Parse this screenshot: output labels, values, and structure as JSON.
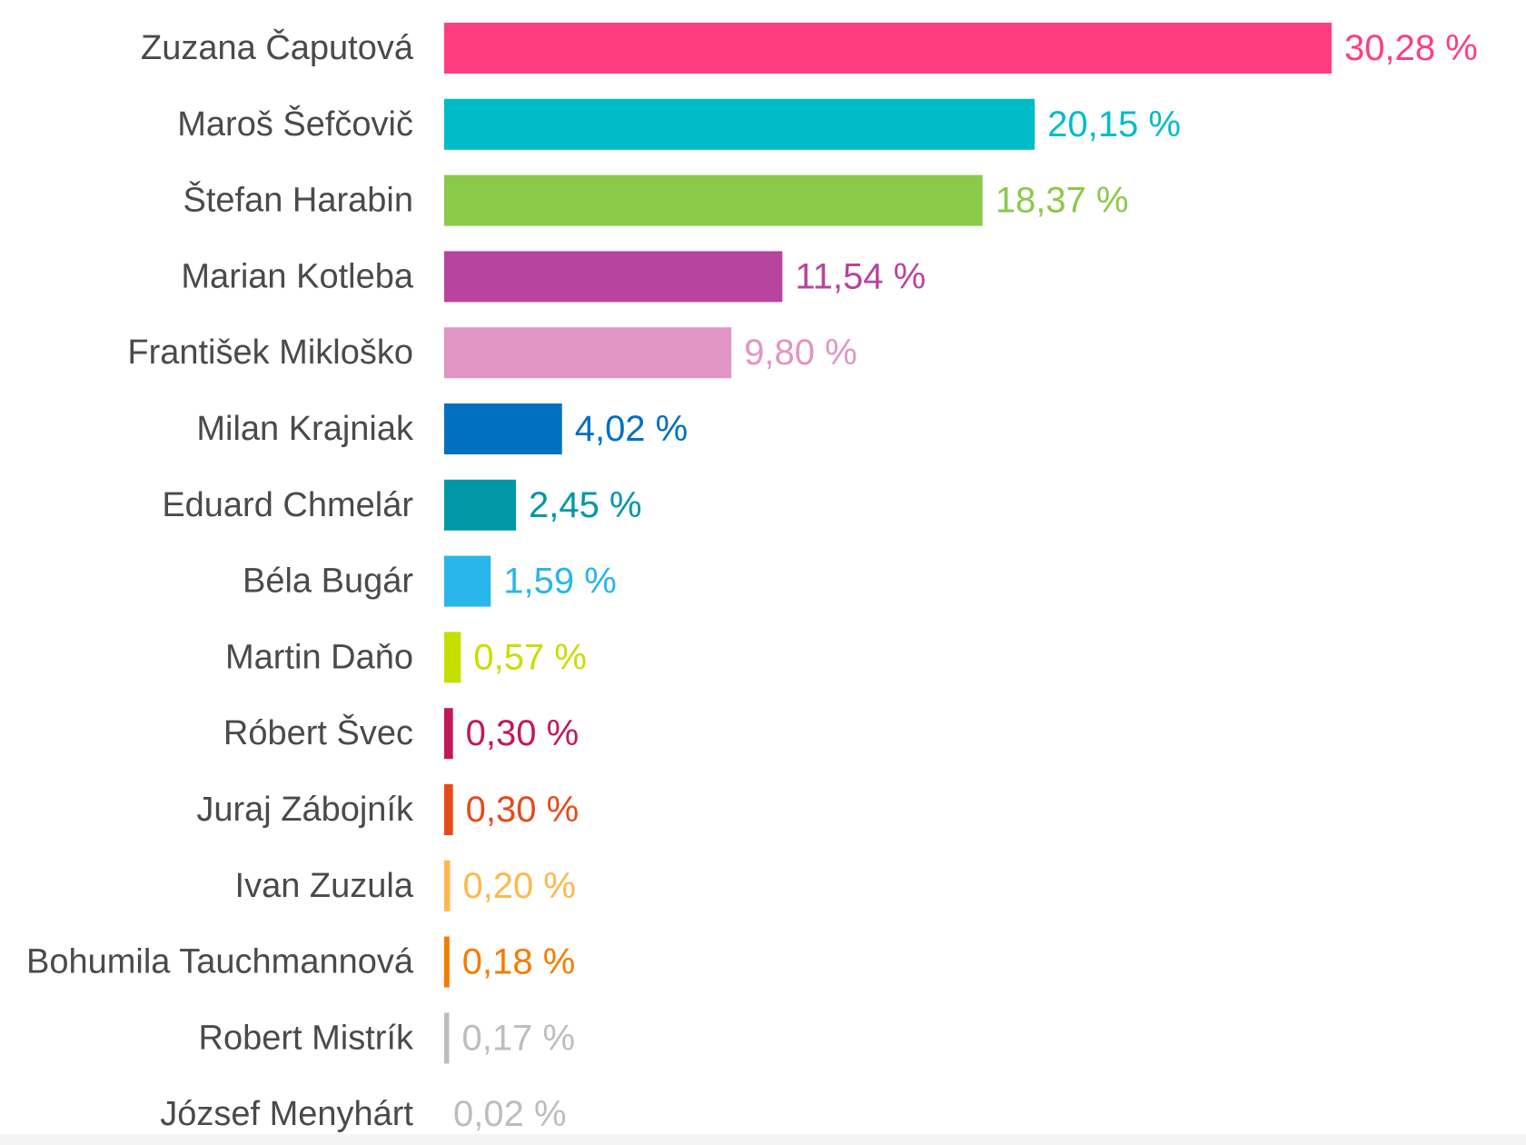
{
  "chart_data": {
    "type": "bar",
    "orientation": "horizontal",
    "categories": [
      "Zuzana Čaputová",
      "Maroš Šefčovič",
      "Štefan Harabin",
      "Marian Kotleba",
      "František Mikloško",
      "Milan Krajniak",
      "Eduard Chmelár",
      "Béla Bugár",
      "Martin Daňo",
      "Róbert Švec",
      "Juraj Zábojník",
      "Ivan Zuzula",
      "Bohumila Tauchmannová",
      "Robert Mistrík",
      "József Menyhárt"
    ],
    "values": [
      30.28,
      20.15,
      18.37,
      11.54,
      9.8,
      4.02,
      2.45,
      1.59,
      0.57,
      0.3,
      0.3,
      0.2,
      0.18,
      0.17,
      0.02
    ],
    "value_labels": [
      "30,28 %",
      "20,15 %",
      "18,37 %",
      "11,54 %",
      "9,80 %",
      "4,02 %",
      "2,45 %",
      "1,59 %",
      "0,57 %",
      "0,30 %",
      "0,30 %",
      "0,20 %",
      "0,18 %",
      "0,17 %",
      "0,02 %"
    ],
    "colors": [
      "#ff3d7f",
      "#00bcc9",
      "#8bc94a",
      "#b8449f",
      "#e195c4",
      "#0070c0",
      "#0097a7",
      "#29b6ea",
      "#c6df00",
      "#c2185b",
      "#e64a19",
      "#ffb74d",
      "#f57c00",
      "#bdbdbd",
      "#bdbdbd"
    ],
    "xlim": [
      0,
      30.28
    ],
    "grid": false,
    "legend": "none"
  }
}
